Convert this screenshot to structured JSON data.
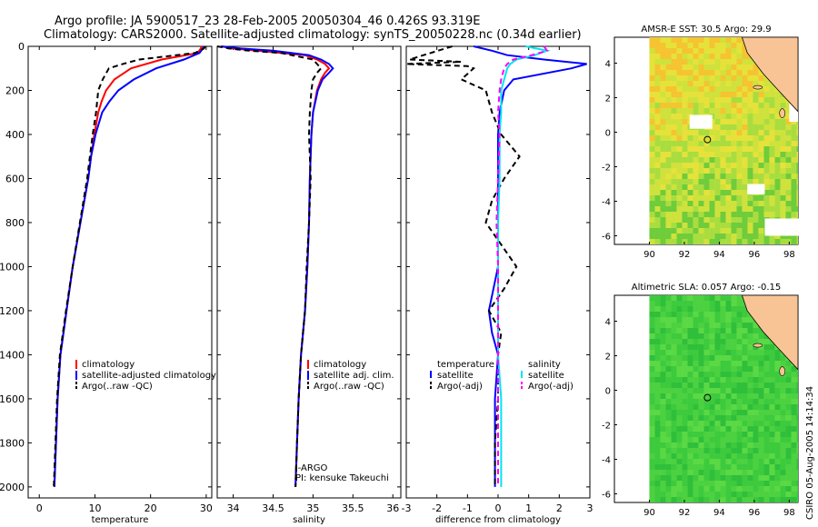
{
  "header": {
    "line1": "Argo profile: JA 5900517_23 28-Feb-2005 20050304_46 0.426S 93.319E",
    "line2": "Climatology: CARS2000. Satellite-adjusted climatology: synTS_20050228.nc (0.34d earlier)"
  },
  "colors": {
    "clim": "#ff0000",
    "sat": "#0000ff",
    "argo": "#000000",
    "sat_sal": "#00e5ee",
    "argo_adj": "#ff00ff",
    "land": "#f9c495",
    "ocean_fill": "#ffffff"
  },
  "chart_data": [
    {
      "type": "line",
      "name": "temperature-panel",
      "xlabel": "temperature",
      "xlim": [
        -2,
        31
      ],
      "ylim": [
        0,
        2050
      ],
      "xticks": [
        0,
        10,
        20,
        30
      ],
      "yticks": [
        0,
        200,
        400,
        600,
        800,
        1000,
        1200,
        1400,
        1600,
        1800,
        2000
      ],
      "legend": [
        "climatology",
        "satellite-adjusted climatology",
        "Argo(..raw -QC)"
      ],
      "series": [
        {
          "name": "climatology",
          "style": "solid",
          "depth": [
            0,
            10,
            30,
            60,
            100,
            150,
            200,
            250,
            300,
            400,
            500,
            600,
            800,
            1000,
            1200,
            1400,
            1600,
            1800,
            2000
          ],
          "values": [
            29.2,
            29.0,
            28.5,
            22,
            16.5,
            13.5,
            12.0,
            11.2,
            10.6,
            9.9,
            9.3,
            8.8,
            7.4,
            6.0,
            4.9,
            3.8,
            3.3,
            3.0,
            2.7
          ]
        },
        {
          "name": "satellite-adjusted climatology",
          "style": "solid",
          "depth": [
            0,
            10,
            30,
            60,
            100,
            150,
            200,
            250,
            300,
            400,
            500,
            600,
            800,
            1000,
            1200,
            1400,
            1600,
            1800,
            2000
          ],
          "values": [
            29.6,
            29.4,
            28.8,
            26,
            21,
            17,
            14.2,
            12.6,
            11.3,
            10.1,
            9.3,
            8.8,
            7.4,
            6.0,
            4.9,
            3.8,
            3.3,
            3.0,
            2.7
          ]
        },
        {
          "name": "Argo(..raw -QC)",
          "style": "dash",
          "depth": [
            0,
            10,
            30,
            60,
            80,
            100,
            150,
            200,
            300,
            400,
            500,
            600,
            800,
            1000,
            1200,
            1400,
            1600,
            1800,
            2000
          ],
          "values": [
            29.8,
            29.6,
            28,
            18,
            15,
            12.5,
            11.4,
            10.6,
            10.2,
            9.6,
            9.1,
            8.6,
            7.3,
            6.0,
            4.8,
            3.7,
            3.2,
            2.9,
            2.6
          ]
        }
      ]
    },
    {
      "type": "line",
      "name": "salinity-panel",
      "xlabel": "salinity",
      "xlim": [
        33.8,
        36.1
      ],
      "ylim": [
        0,
        2050
      ],
      "xticks": [
        34,
        34.5,
        35,
        35.5,
        36
      ],
      "xticklabels": [
        "34",
        "34.5",
        "35",
        "35.5",
        "36"
      ],
      "legend": [
        "climatology",
        "satellite adj. clim.",
        "Argo(..raw -QC)"
      ],
      "notes": [
        "J-ARGO",
        "PI: kensuke Takeuchi"
      ],
      "series": [
        {
          "name": "climatology",
          "style": "solid",
          "depth": [
            0,
            10,
            20,
            40,
            60,
            80,
            100,
            120,
            150,
            200,
            300,
            400,
            600,
            800,
            1000,
            1200,
            1400,
            1600,
            1800,
            2000
          ],
          "values": [
            33.85,
            34.0,
            34.3,
            34.9,
            35.05,
            35.15,
            35.2,
            35.15,
            35.1,
            35.05,
            35.0,
            34.98,
            34.96,
            34.95,
            34.93,
            34.9,
            34.85,
            34.82,
            34.8,
            34.78
          ]
        },
        {
          "name": "satellite adj. clim.",
          "style": "solid",
          "depth": [
            0,
            10,
            20,
            40,
            60,
            80,
            100,
            120,
            150,
            200,
            300,
            400,
            600,
            800,
            1000,
            1200,
            1400,
            1600,
            1800,
            2000
          ],
          "values": [
            33.85,
            34.1,
            34.5,
            34.95,
            35.1,
            35.2,
            35.25,
            35.2,
            35.12,
            35.06,
            35.0,
            34.98,
            34.96,
            34.95,
            34.93,
            34.9,
            34.85,
            34.82,
            34.8,
            34.78
          ]
        },
        {
          "name": "Argo(..raw -QC)",
          "style": "dash",
          "depth": [
            0,
            10,
            20,
            30,
            60,
            100,
            120,
            150,
            200,
            300,
            400,
            600,
            800,
            1000,
            1200,
            1400,
            1600,
            1800,
            2000
          ],
          "values": [
            33.8,
            33.95,
            34.2,
            34.6,
            35.0,
            35.1,
            35.05,
            35.0,
            34.98,
            34.96,
            34.95,
            34.97,
            34.95,
            34.92,
            34.9,
            34.85,
            34.82,
            34.8,
            34.78
          ]
        }
      ]
    },
    {
      "type": "line",
      "name": "difference-panel",
      "xlabel": "difference from climatology",
      "xlim": [
        -3,
        3
      ],
      "ylim": [
        0,
        2050
      ],
      "xticks": [
        -3,
        -2,
        -1,
        0,
        1,
        2,
        3
      ],
      "xticklabels": [
        "-3",
        "-2",
        "-1",
        "0",
        "1",
        "2",
        "3"
      ],
      "legend_temp": [
        "temperature",
        "satellite",
        "Argo(-adj)"
      ],
      "legend_sal": [
        "salinity",
        "satellite",
        "Argo(-adj)"
      ],
      "series": [
        {
          "name": "temperature satellite",
          "style": "solid",
          "color": "sat",
          "depth": [
            0,
            20,
            40,
            60,
            80,
            100,
            150,
            200,
            300,
            400,
            600,
            800,
            1000,
            1200,
            1300,
            1400,
            1600,
            1800,
            2000
          ],
          "values": [
            -0.8,
            -0.2,
            0.3,
            1.5,
            2.9,
            2.4,
            0.5,
            0.2,
            0.05,
            0.0,
            0.0,
            0.0,
            0.0,
            -0.3,
            -0.2,
            0.0,
            -0.1,
            -0.1,
            -0.1
          ]
        },
        {
          "name": "temperature Argo(-adj)",
          "style": "dash",
          "color": "argo",
          "depth": [
            0,
            60,
            70,
            80,
            90,
            100,
            150,
            200,
            300,
            400,
            500,
            600,
            700,
            800,
            900,
            1000,
            1100,
            1200,
            1300,
            1400,
            1600,
            1800,
            2000
          ],
          "values": [
            -1.5,
            -2.9,
            -1.2,
            -3.0,
            -1.0,
            -0.8,
            -1.2,
            -0.4,
            -0.2,
            0.1,
            0.7,
            0.2,
            -0.2,
            -0.4,
            0.1,
            0.6,
            0.2,
            -0.3,
            0.1,
            0.0,
            0.0,
            -0.1,
            -0.1
          ]
        },
        {
          "name": "salinity satellite",
          "style": "solid",
          "color": "sat_sal",
          "depth": [
            0,
            20,
            40,
            60,
            80,
            100,
            150,
            200,
            300,
            400,
            600,
            800,
            1000,
            1200,
            1400,
            1600,
            1800,
            2000
          ],
          "values": [
            0.9,
            1.6,
            1.2,
            0.6,
            0.4,
            0.3,
            0.2,
            0.1,
            0.1,
            0.05,
            0.05,
            0.0,
            0.0,
            0.0,
            0.0,
            0.1,
            0.1,
            0.1
          ]
        },
        {
          "name": "salinity Argo(-adj)",
          "style": "dash",
          "color": "argo_adj",
          "depth": [
            0,
            20,
            40,
            60,
            80,
            100,
            150,
            200,
            300,
            400,
            600,
            800,
            1000,
            1200,
            1400,
            1600,
            1800,
            2000
          ],
          "values": [
            1.5,
            1.6,
            1.1,
            0.5,
            0.3,
            0.2,
            0.1,
            0.05,
            0.0,
            0.05,
            0.0,
            -0.05,
            0.0,
            0.0,
            0.0,
            0.0,
            0.0,
            0.0
          ]
        }
      ]
    },
    {
      "type": "heatmap",
      "name": "sst-map",
      "title": "AMSR-E SST: 30.5 Argo: 29.9",
      "xlim": [
        88,
        98.5
      ],
      "ylim": [
        -6.5,
        5.5
      ],
      "xticks": [
        90,
        92,
        94,
        96,
        98
      ],
      "yticks": [
        -6,
        -4,
        -2,
        0,
        2,
        4
      ],
      "argo_position": {
        "lon": 93.32,
        "lat": -0.43
      }
    },
    {
      "type": "heatmap",
      "name": "sla-map",
      "title": "Altimetric SLA: 0.057 Argo: -0.15",
      "xlim": [
        88,
        98.5
      ],
      "ylim": [
        -6.5,
        5.5
      ],
      "xticks": [
        90,
        92,
        94,
        96,
        98
      ],
      "yticks": [
        -6,
        -4,
        -2,
        0,
        2,
        4
      ],
      "argo_position": {
        "lon": 93.32,
        "lat": -0.43
      }
    }
  ],
  "footer": {
    "credit": "CSIRO 05-Aug-2005 14:14:34"
  }
}
